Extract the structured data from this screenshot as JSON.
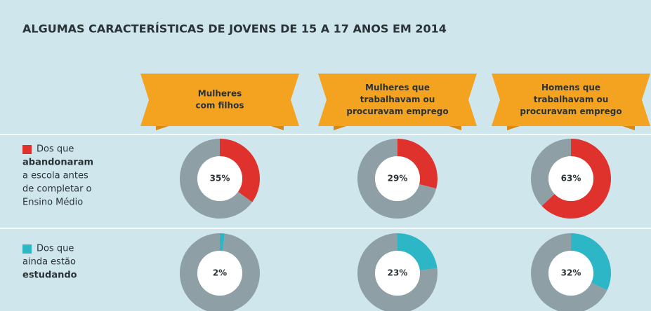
{
  "title": "ALGUMAS CARACTERÍSTICAS DE JOVENS DE 15 A 17 ANOS EM 2014",
  "columns": [
    [
      "Mulheres",
      "com filhos"
    ],
    [
      "Mulheres que",
      "trabalhavam ou",
      "procuravam emprego"
    ],
    [
      "Homens que",
      "trabalhavam ou",
      "procuravam emprego"
    ]
  ],
  "rows": [
    {
      "lines": [
        "Dos que",
        "abandonaram",
        "a escola antes",
        "de completar o",
        "Ensino Médio"
      ],
      "bold": [
        1
      ],
      "color": "#e0322c"
    },
    {
      "lines": [
        "Dos que",
        "ainda estão",
        "estudando"
      ],
      "bold": [
        2
      ],
      "color": "#2cb6c6"
    }
  ],
  "chart_data": [
    {
      "type": "pie",
      "values": [
        35,
        65
      ],
      "center_label": "35%",
      "colors": [
        "#e0322c",
        "#8f9fa6"
      ]
    },
    {
      "type": "pie",
      "values": [
        29,
        71
      ],
      "center_label": "29%",
      "colors": [
        "#e0322c",
        "#8f9fa6"
      ]
    },
    {
      "type": "pie",
      "values": [
        63,
        37
      ],
      "center_label": "63%",
      "colors": [
        "#e0322c",
        "#8f9fa6"
      ]
    },
    {
      "type": "pie",
      "values": [
        2,
        98
      ],
      "center_label": "2%",
      "colors": [
        "#2cb6c6",
        "#8f9fa6"
      ]
    },
    {
      "type": "pie",
      "values": [
        23,
        77
      ],
      "center_label": "23%",
      "colors": [
        "#2cb6c6",
        "#8f9fa6"
      ]
    },
    {
      "type": "pie",
      "values": [
        32,
        68
      ],
      "center_label": "32%",
      "colors": [
        "#2cb6c6",
        "#8f9fa6"
      ]
    }
  ]
}
